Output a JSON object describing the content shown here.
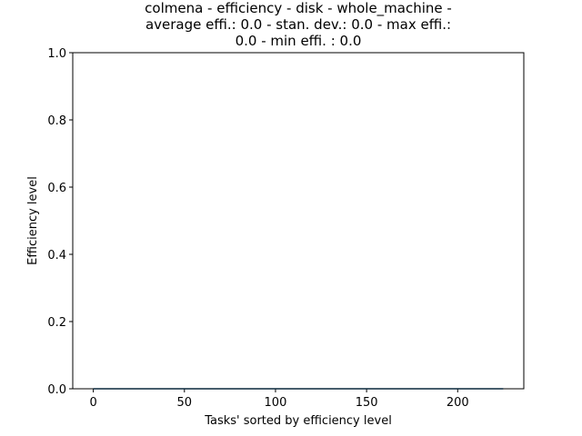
{
  "chart_data": {
    "type": "line",
    "title_lines": [
      "colmena - efficiency - disk - whole_machine -",
      "average effi.: 0.0 - stan. dev.: 0.0 - max effi.:",
      "0.0 - min effi. : 0.0"
    ],
    "xlabel": "Tasks' sorted by efficiency level",
    "ylabel": "Efficiency level",
    "xlim": [
      -11.3,
      236.3
    ],
    "ylim": [
      0,
      1
    ],
    "xticks": [
      0,
      50,
      100,
      150,
      200
    ],
    "xtick_labels": [
      "0",
      "50",
      "100",
      "150",
      "200"
    ],
    "yticks": [
      0,
      0.2,
      0.4,
      0.6,
      0.8,
      1.0
    ],
    "ytick_labels": [
      "0.0",
      "0.2",
      "0.4",
      "0.6",
      "0.8",
      "1.0"
    ],
    "grid": false,
    "series": [
      {
        "color": "#1f77b4",
        "x_range": [
          0,
          225
        ],
        "constant_y": 0.0
      }
    ]
  }
}
